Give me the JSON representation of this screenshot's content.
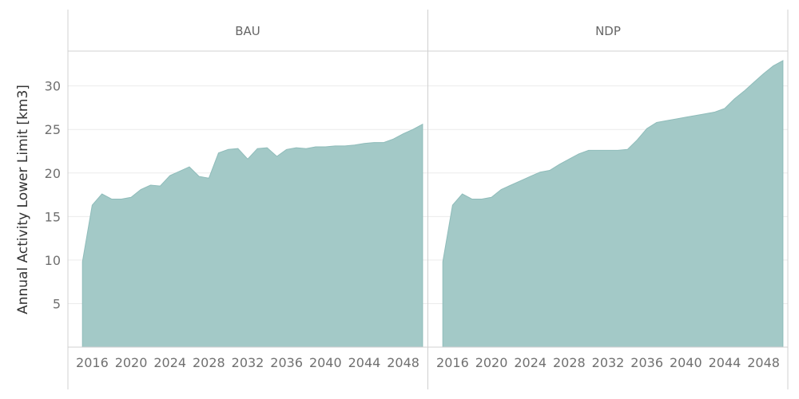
{
  "chart_data": {
    "type": "area",
    "ylabel": "Annual Activity Lower Limit [km3]",
    "xlabel": "",
    "ylim": [
      0,
      34
    ],
    "xlim": [
      2013.5,
      2050.5
    ],
    "yticks": [
      5,
      10,
      15,
      20,
      25,
      30
    ],
    "xticks": [
      2016,
      2020,
      2024,
      2028,
      2032,
      2036,
      2040,
      2044,
      2048
    ],
    "grid": true,
    "color": "#a3c9c7",
    "stroke_color": "#8fbcba",
    "x": [
      2015,
      2016,
      2017,
      2018,
      2019,
      2020,
      2021,
      2022,
      2023,
      2024,
      2025,
      2026,
      2027,
      2028,
      2029,
      2030,
      2031,
      2032,
      2033,
      2034,
      2035,
      2036,
      2037,
      2038,
      2039,
      2040,
      2041,
      2042,
      2043,
      2044,
      2045,
      2046,
      2047,
      2048,
      2049,
      2050
    ],
    "panels": [
      {
        "name": "BAU",
        "values": [
          9.8,
          16.3,
          17.6,
          17.0,
          17.0,
          17.2,
          18.1,
          18.6,
          18.5,
          19.7,
          20.2,
          20.7,
          19.6,
          19.4,
          22.3,
          22.7,
          22.8,
          21.6,
          22.8,
          22.9,
          21.9,
          22.7,
          22.9,
          22.8,
          23.0,
          23.0,
          23.1,
          23.1,
          23.2,
          23.4,
          23.5,
          23.5,
          23.9,
          24.5,
          25.0,
          25.6
        ]
      },
      {
        "name": "NDP",
        "values": [
          9.8,
          16.3,
          17.6,
          17.0,
          17.0,
          17.2,
          18.1,
          18.6,
          19.1,
          19.6,
          20.1,
          20.3,
          21.0,
          21.6,
          22.2,
          22.6,
          22.6,
          22.6,
          22.6,
          22.7,
          23.8,
          25.1,
          25.8,
          26.0,
          26.2,
          26.4,
          26.6,
          26.8,
          27.0,
          27.4,
          28.5,
          29.4,
          30.4,
          31.4,
          32.3,
          32.9
        ]
      }
    ]
  }
}
